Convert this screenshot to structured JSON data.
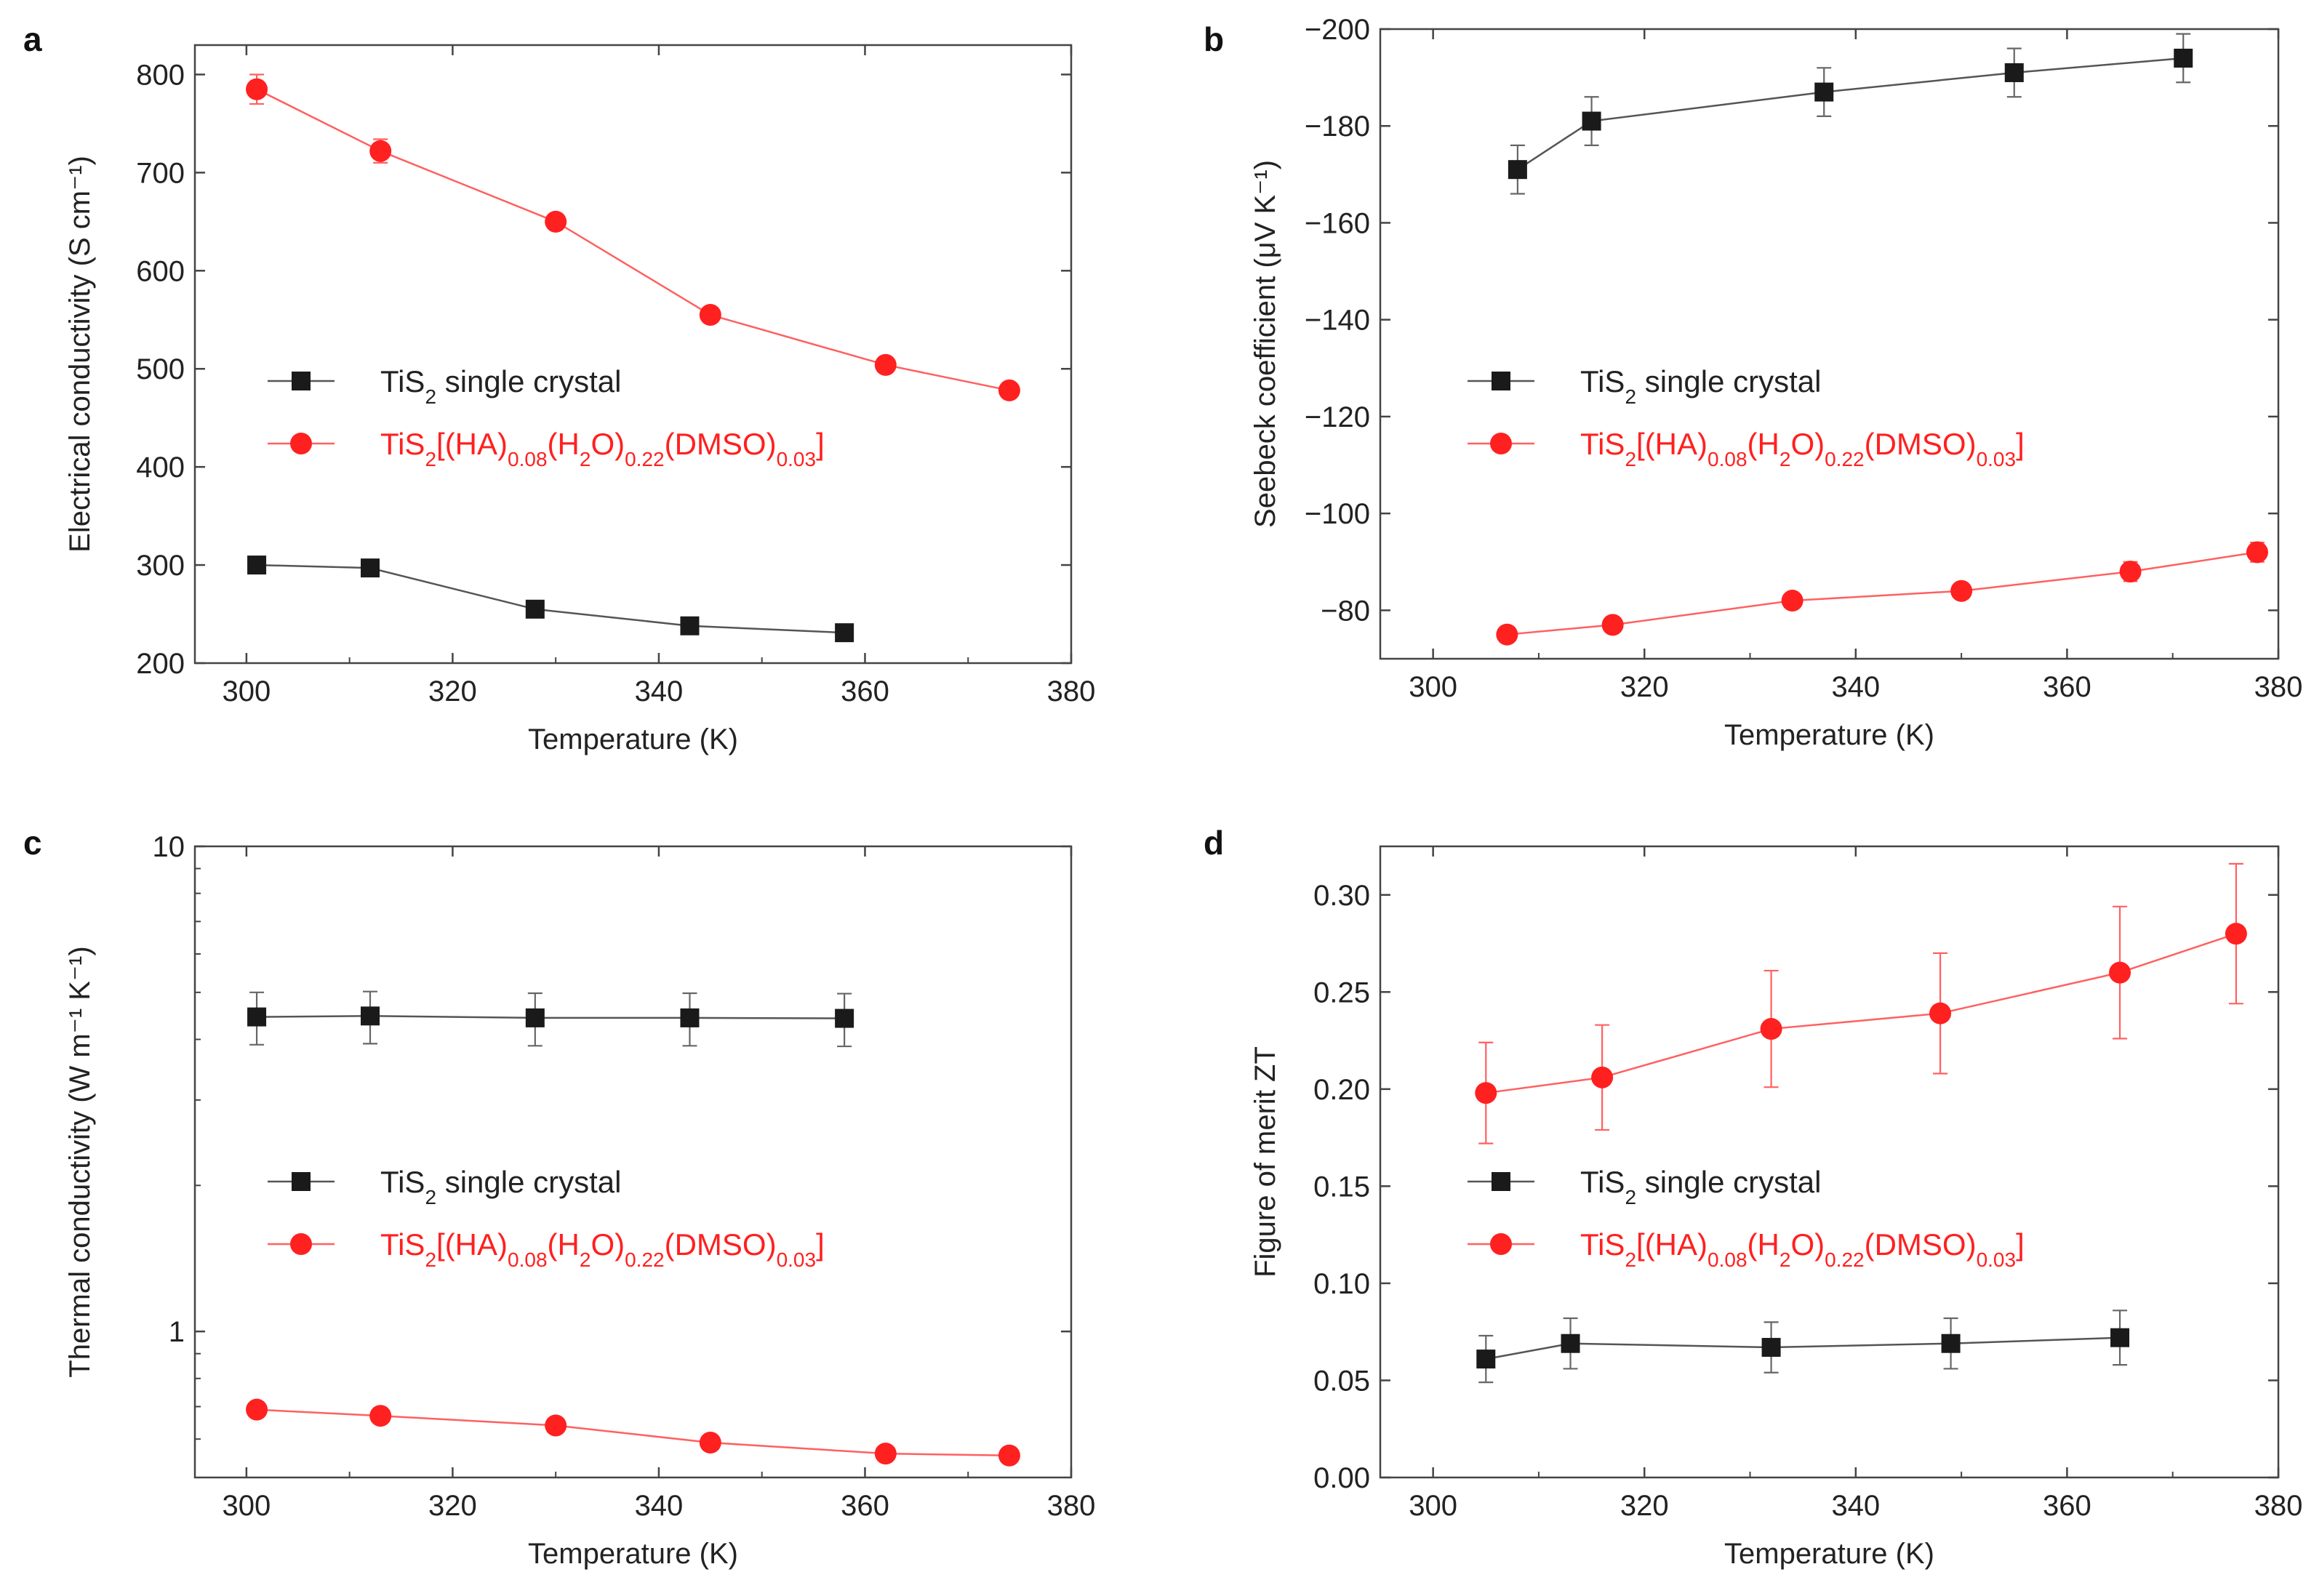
{
  "chart_data": [
    {
      "panel": "a",
      "type": "line",
      "xlabel": "Temperature (K)",
      "ylabel": "Electrical conductivity (S cm⁻¹)",
      "yscale": "linear",
      "xlim": [
        295,
        380
      ],
      "ylim": [
        200,
        830
      ],
      "xticks": [
        300,
        320,
        340,
        360,
        380
      ],
      "yticks": [
        200,
        300,
        400,
        500,
        600,
        700,
        800
      ],
      "xtick_labels": [
        "300",
        "320",
        "340",
        "360",
        "380"
      ],
      "ytick_labels": [
        "200",
        "300",
        "400",
        "500",
        "600",
        "700",
        "800"
      ],
      "series": [
        {
          "name": "TiS2 single crystal",
          "label_parts": [
            [
              "TiS",
              "n"
            ],
            [
              "2",
              "sub"
            ],
            [
              " single crystal",
              "n"
            ]
          ],
          "marker": "square",
          "color": "#1a1a1a",
          "line_color": "#555555",
          "x": [
            301,
            312,
            328,
            343,
            358
          ],
          "y": [
            300,
            297,
            255,
            238,
            231
          ],
          "err": [
            0,
            0,
            0,
            0,
            0
          ]
        },
        {
          "name": "TiS2[(HA)0.08(H2O)0.22(DMSO)0.03]",
          "label_parts": [
            [
              "TiS",
              "n"
            ],
            [
              "2",
              "sub"
            ],
            [
              "[(HA)",
              "n"
            ],
            [
              "0.08",
              "sub"
            ],
            [
              "(H",
              "n"
            ],
            [
              "2",
              "sub"
            ],
            [
              "O)",
              "n"
            ],
            [
              "0.22",
              "sub"
            ],
            [
              "(DMSO)",
              "n"
            ],
            [
              "0.03",
              "sub"
            ],
            [
              "]",
              "n"
            ]
          ],
          "marker": "circle",
          "color": "#ff2020",
          "line_color": "#ff6060",
          "x": [
            301,
            313,
            330,
            345,
            362,
            374
          ],
          "y": [
            785,
            722,
            650,
            555,
            504,
            478
          ],
          "err": [
            15,
            12,
            0,
            0,
            0,
            0
          ]
        }
      ]
    },
    {
      "panel": "b",
      "type": "line",
      "xlabel": "Temperature (K)",
      "ylabel": "Seebeck coefficient (μV K⁻¹)",
      "yscale": "linear",
      "yinverted": true,
      "xlim": [
        295,
        380
      ],
      "ylim": [
        -70,
        -200
      ],
      "xticks": [
        300,
        320,
        340,
        360,
        380
      ],
      "yticks": [
        -80,
        -100,
        -120,
        -140,
        -160,
        -180,
        -200
      ],
      "xtick_labels": [
        "300",
        "320",
        "340",
        "360",
        "380"
      ],
      "ytick_labels": [
        "−80",
        "−100",
        "−120",
        "−140",
        "−160",
        "−180",
        "−200"
      ],
      "series": [
        {
          "name": "TiS2 single crystal",
          "label_parts": [
            [
              "TiS",
              "n"
            ],
            [
              "2",
              "sub"
            ],
            [
              " single crystal",
              "n"
            ]
          ],
          "marker": "square",
          "color": "#1a1a1a",
          "line_color": "#555555",
          "x": [
            308,
            315,
            337,
            355,
            371
          ],
          "y": [
            -171,
            -181,
            -187,
            -191,
            -194
          ],
          "err": [
            5,
            5,
            5,
            5,
            5
          ]
        },
        {
          "name": "TiS2[(HA)0.08(H2O)0.22(DMSO)0.03]",
          "label_parts": [
            [
              "TiS",
              "n"
            ],
            [
              "2",
              "sub"
            ],
            [
              "[(HA)",
              "n"
            ],
            [
              "0.08",
              "sub"
            ],
            [
              "(H",
              "n"
            ],
            [
              "2",
              "sub"
            ],
            [
              "O)",
              "n"
            ],
            [
              "0.22",
              "sub"
            ],
            [
              "(DMSO)",
              "n"
            ],
            [
              "0.03",
              "sub"
            ],
            [
              "]",
              "n"
            ]
          ],
          "marker": "circle",
          "color": "#ff2020",
          "line_color": "#ff6060",
          "x": [
            307,
            317,
            334,
            350,
            366,
            378
          ],
          "y": [
            -75,
            -77,
            -82,
            -84,
            -88,
            -92
          ],
          "err": [
            0,
            0,
            0,
            0,
            2,
            2
          ]
        }
      ]
    },
    {
      "panel": "c",
      "type": "line",
      "xlabel": "Temperature (K)",
      "ylabel": "Thermal conductivity (W m⁻¹ K⁻¹)",
      "yscale": "log",
      "xlim": [
        295,
        380
      ],
      "ylim": [
        0.5,
        10
      ],
      "xticks": [
        300,
        320,
        340,
        360,
        380
      ],
      "yticks": [
        1,
        10
      ],
      "xtick_labels": [
        "300",
        "320",
        "340",
        "360",
        "380"
      ],
      "ytick_labels": [
        "1",
        "10"
      ],
      "series": [
        {
          "name": "TiS2 single crystal",
          "label_parts": [
            [
              "TiS",
              "n"
            ],
            [
              "2",
              "sub"
            ],
            [
              " single crystal",
              "n"
            ]
          ],
          "marker": "square",
          "color": "#1a1a1a",
          "line_color": "#555555",
          "x": [
            301,
            312,
            328,
            343,
            358
          ],
          "y": [
            4.45,
            4.47,
            4.43,
            4.43,
            4.42
          ],
          "err": [
            0.55,
            0.55,
            0.55,
            0.55,
            0.55
          ]
        },
        {
          "name": "TiS2[(HA)0.08(H2O)0.22(DMSO)0.03]",
          "label_parts": [
            [
              "TiS",
              "n"
            ],
            [
              "2",
              "sub"
            ],
            [
              "[(HA)",
              "n"
            ],
            [
              "0.08",
              "sub"
            ],
            [
              "(H",
              "n"
            ],
            [
              "2",
              "sub"
            ],
            [
              "O)",
              "n"
            ],
            [
              "0.22",
              "sub"
            ],
            [
              "(DMSO)",
              "n"
            ],
            [
              "0.03",
              "sub"
            ],
            [
              "]",
              "n"
            ]
          ],
          "marker": "circle",
          "color": "#ff2020",
          "line_color": "#ff6060",
          "x": [
            301,
            313,
            330,
            345,
            362,
            374
          ],
          "y": [
            0.69,
            0.67,
            0.64,
            0.59,
            0.56,
            0.555
          ],
          "err": [
            0,
            0,
            0,
            0,
            0,
            0
          ]
        }
      ]
    },
    {
      "panel": "d",
      "type": "line",
      "xlabel": "Temperature (K)",
      "ylabel": "Figure of merit ZT",
      "yscale": "linear",
      "xlim": [
        295,
        380
      ],
      "ylim": [
        0,
        0.325
      ],
      "xticks": [
        300,
        320,
        340,
        360,
        380
      ],
      "yticks": [
        0,
        0.05,
        0.1,
        0.15,
        0.2,
        0.25,
        0.3
      ],
      "xtick_labels": [
        "300",
        "320",
        "340",
        "360",
        "380"
      ],
      "ytick_labels": [
        "0.00",
        "0.05",
        "0.10",
        "0.15",
        "0.20",
        "0.25",
        "0.30"
      ],
      "series": [
        {
          "name": "TiS2 single crystal",
          "label_parts": [
            [
              "TiS",
              "n"
            ],
            [
              "2",
              "sub"
            ],
            [
              " single crystal",
              "n"
            ]
          ],
          "marker": "square",
          "color": "#1a1a1a",
          "line_color": "#555555",
          "x": [
            305,
            313,
            332,
            349,
            365
          ],
          "y": [
            0.061,
            0.069,
            0.067,
            0.069,
            0.072
          ],
          "err": [
            0.012,
            0.013,
            0.013,
            0.013,
            0.014
          ]
        },
        {
          "name": "TiS2[(HA)0.08(H2O)0.22(DMSO)0.03]",
          "label_parts": [
            [
              "TiS",
              "n"
            ],
            [
              "2",
              "sub"
            ],
            [
              "[(HA)",
              "n"
            ],
            [
              "0.08",
              "sub"
            ],
            [
              "(H",
              "n"
            ],
            [
              "2",
              "sub"
            ],
            [
              "O)",
              "n"
            ],
            [
              "0.22",
              "sub"
            ],
            [
              "(DMSO)",
              "n"
            ],
            [
              "0.03",
              "sub"
            ],
            [
              "]",
              "n"
            ]
          ],
          "marker": "circle",
          "color": "#ff2020",
          "line_color": "#ff6060",
          "x": [
            305,
            316,
            332,
            348,
            365,
            376
          ],
          "y": [
            0.198,
            0.206,
            0.231,
            0.239,
            0.26,
            0.28
          ],
          "err": [
            0.026,
            0.027,
            0.03,
            0.031,
            0.034,
            0.036
          ]
        }
      ]
    }
  ]
}
